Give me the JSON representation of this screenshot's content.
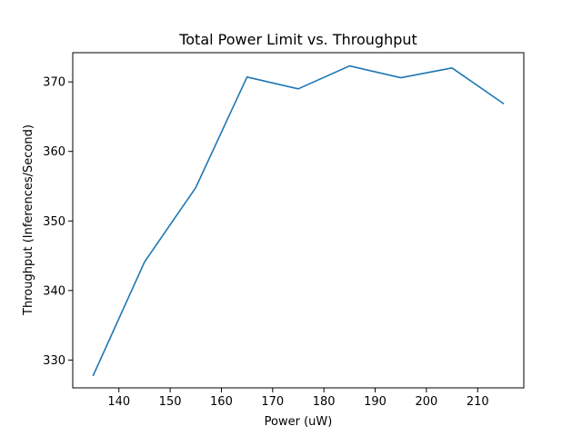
{
  "chart_data": {
    "type": "line",
    "title": "Total Power Limit vs. Throughput",
    "xlabel": "Power (uW)",
    "ylabel": "Throughput (Inferences/Second)",
    "xlim": [
      131,
      219
    ],
    "ylim": [
      326.0,
      374.2
    ],
    "x_ticks": [
      140,
      150,
      160,
      170,
      180,
      190,
      200,
      210
    ],
    "y_ticks": [
      330,
      340,
      350,
      360,
      370
    ],
    "grid": false,
    "series": [
      {
        "color": "#1f77b4",
        "x": [
          135,
          145,
          155,
          165,
          175,
          185,
          195,
          205,
          215
        ],
        "y": [
          327.8,
          344.1,
          354.8,
          370.7,
          369.0,
          372.3,
          370.6,
          372.0,
          366.9
        ]
      }
    ]
  }
}
